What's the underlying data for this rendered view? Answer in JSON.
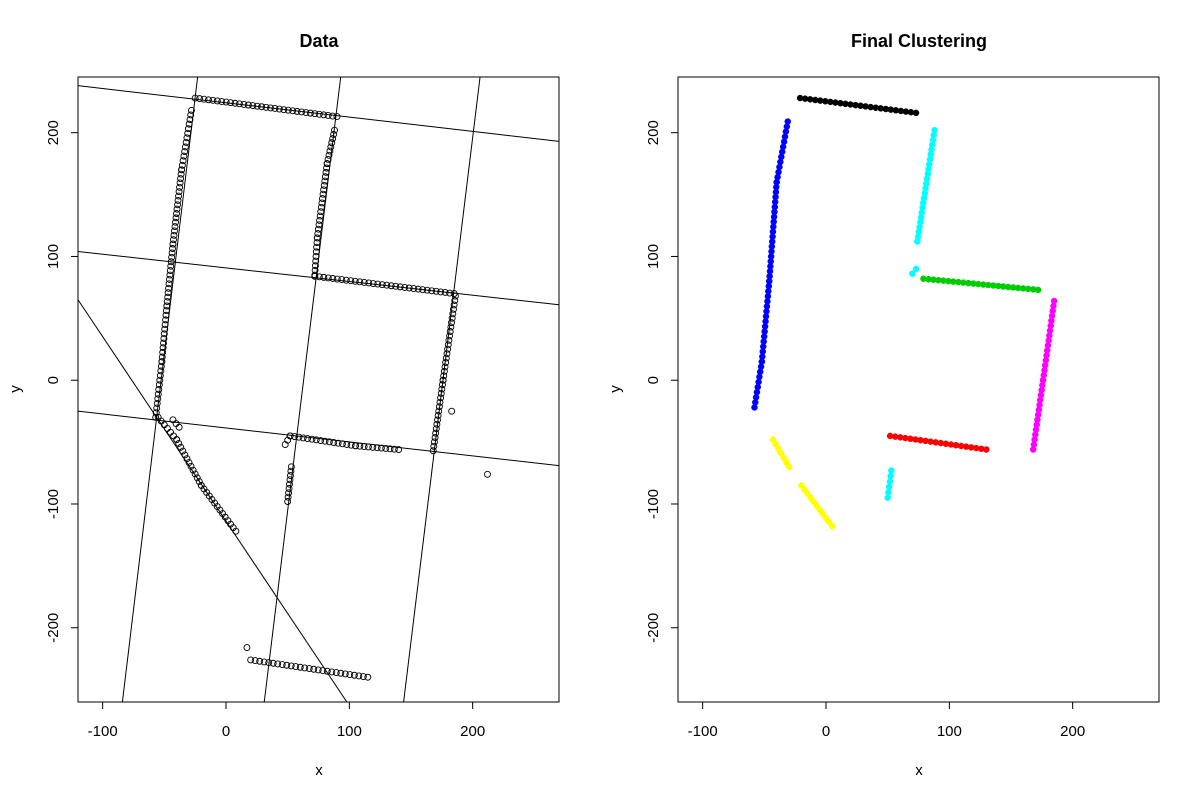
{
  "chart_data": [
    {
      "type": "scatter",
      "title": "Data",
      "xlabel": "x",
      "ylabel": "y",
      "xlim": [
        -120,
        270
      ],
      "ylim": [
        -260,
        245
      ],
      "xticks": [
        -100,
        0,
        100,
        200
      ],
      "yticks": [
        -200,
        -100,
        0,
        100,
        200
      ],
      "grid": false,
      "legend": "none",
      "point_style": "open-circle",
      "point_color": "#000000",
      "segments": [
        {
          "x": [
            -55,
            -40
          ],
          "y": [
            -30,
            -48
          ]
        },
        {
          "x": [
            -40,
            -20
          ],
          "y": [
            -48,
            -85
          ]
        },
        {
          "x": [
            -20,
            8
          ],
          "y": [
            -85,
            -122
          ]
        },
        {
          "x": [
            -43,
            -38
          ],
          "y": [
            -32,
            -38
          ]
        },
        {
          "x": [
            48,
            52
          ],
          "y": [
            -52,
            -45
          ]
        },
        {
          "x": [
            52,
            105
          ],
          "y": [
            -45,
            -53
          ]
        },
        {
          "x": [
            105,
            140
          ],
          "y": [
            -53,
            -56
          ]
        },
        {
          "x": [
            50,
            53
          ],
          "y": [
            -98,
            -70
          ]
        },
        {
          "x": [
            20,
            115
          ],
          "y": [
            -226,
            -240
          ]
        },
        {
          "x": [
            -57,
            -52
          ],
          "y": [
            -30,
            15
          ]
        },
        {
          "x": [
            -52,
            -48
          ],
          "y": [
            15,
            60
          ]
        },
        {
          "x": [
            -48,
            -43
          ],
          "y": [
            60,
            110
          ]
        },
        {
          "x": [
            -43,
            -36
          ],
          "y": [
            110,
            170
          ]
        },
        {
          "x": [
            -36,
            -28
          ],
          "y": [
            170,
            218
          ]
        },
        {
          "x": [
            -25,
            90
          ],
          "y": [
            228,
            213
          ]
        },
        {
          "x": [
            88,
            82
          ],
          "y": [
            202,
            175
          ]
        },
        {
          "x": [
            82,
            74
          ],
          "y": [
            175,
            115
          ]
        },
        {
          "x": [
            74,
            72
          ],
          "y": [
            115,
            85
          ]
        },
        {
          "x": [
            72,
            185
          ],
          "y": [
            84,
            70
          ]
        },
        {
          "x": [
            186,
            176
          ],
          "y": [
            68,
            0
          ]
        },
        {
          "x": [
            176,
            168
          ],
          "y": [
            0,
            -57
          ]
        }
      ],
      "outliers": {
        "x": [
          183,
          212,
          17
        ],
        "y": [
          -25,
          -76,
          -216
        ]
      },
      "lines": [
        {
          "x": [
            -120,
            270
          ],
          "y": [
            238,
            193
          ]
        },
        {
          "x": [
            -120,
            270
          ],
          "y": [
            104,
            61
          ]
        },
        {
          "x": [
            -120,
            270
          ],
          "y": [
            -25,
            -69
          ]
        },
        {
          "x": [
            -120,
            98
          ],
          "y": [
            65,
            -260
          ]
        },
        {
          "x": [
            -84,
            -23
          ],
          "y": [
            -260,
            245
          ]
        },
        {
          "x": [
            31,
            93
          ],
          "y": [
            -260,
            245
          ]
        },
        {
          "x": [
            144,
            206
          ],
          "y": [
            -260,
            245
          ]
        }
      ]
    },
    {
      "type": "scatter",
      "title": "Final Clustering",
      "xlabel": "x",
      "ylabel": "y",
      "xlim": [
        -120,
        270
      ],
      "ylim": [
        -260,
        245
      ],
      "xticks": [
        -100,
        0,
        100,
        200
      ],
      "yticks": [
        -200,
        -100,
        0,
        100,
        200
      ],
      "grid": false,
      "legend": "none",
      "point_style": "filled-circle",
      "clusters": [
        {
          "color": "#0000FF",
          "segments": [
            {
              "x": [
                -58,
                -52
              ],
              "y": [
                -22,
                15
              ]
            },
            {
              "x": [
                -52,
                -46
              ],
              "y": [
                15,
                80
              ]
            },
            {
              "x": [
                -46,
                -40
              ],
              "y": [
                80,
                160
              ]
            },
            {
              "x": [
                -40,
                -31
              ],
              "y": [
                160,
                209
              ]
            }
          ]
        },
        {
          "color": "#000000",
          "segments": [
            {
              "x": [
                -21,
                73
              ],
              "y": [
                228,
                216
              ]
            }
          ]
        },
        {
          "color": "#00FFFF",
          "segments": [
            {
              "x": [
                88,
                74
              ],
              "y": [
                202,
                112
              ]
            },
            {
              "x": [
                70,
                73
              ],
              "y": [
                86,
                90
              ]
            },
            {
              "x": [
                50,
                53
              ],
              "y": [
                -95,
                -73
              ]
            }
          ]
        },
        {
          "color": "#00CD00",
          "segments": [
            {
              "x": [
                79,
                172
              ],
              "y": [
                82,
                73
              ]
            }
          ]
        },
        {
          "color": "#FF00FF",
          "segments": [
            {
              "x": [
                185,
                176
              ],
              "y": [
                64,
                0
              ]
            },
            {
              "x": [
                176,
                168
              ],
              "y": [
                0,
                -56
              ]
            }
          ]
        },
        {
          "color": "#FF0000",
          "segments": [
            {
              "x": [
                52,
                130
              ],
              "y": [
                -45,
                -56
              ]
            }
          ]
        },
        {
          "color": "#FFFF00",
          "segments": [
            {
              "x": [
                -43,
                -30
              ],
              "y": [
                -48,
                -70
              ]
            },
            {
              "x": [
                -20,
                5
              ],
              "y": [
                -85,
                -118
              ]
            }
          ]
        }
      ]
    }
  ]
}
